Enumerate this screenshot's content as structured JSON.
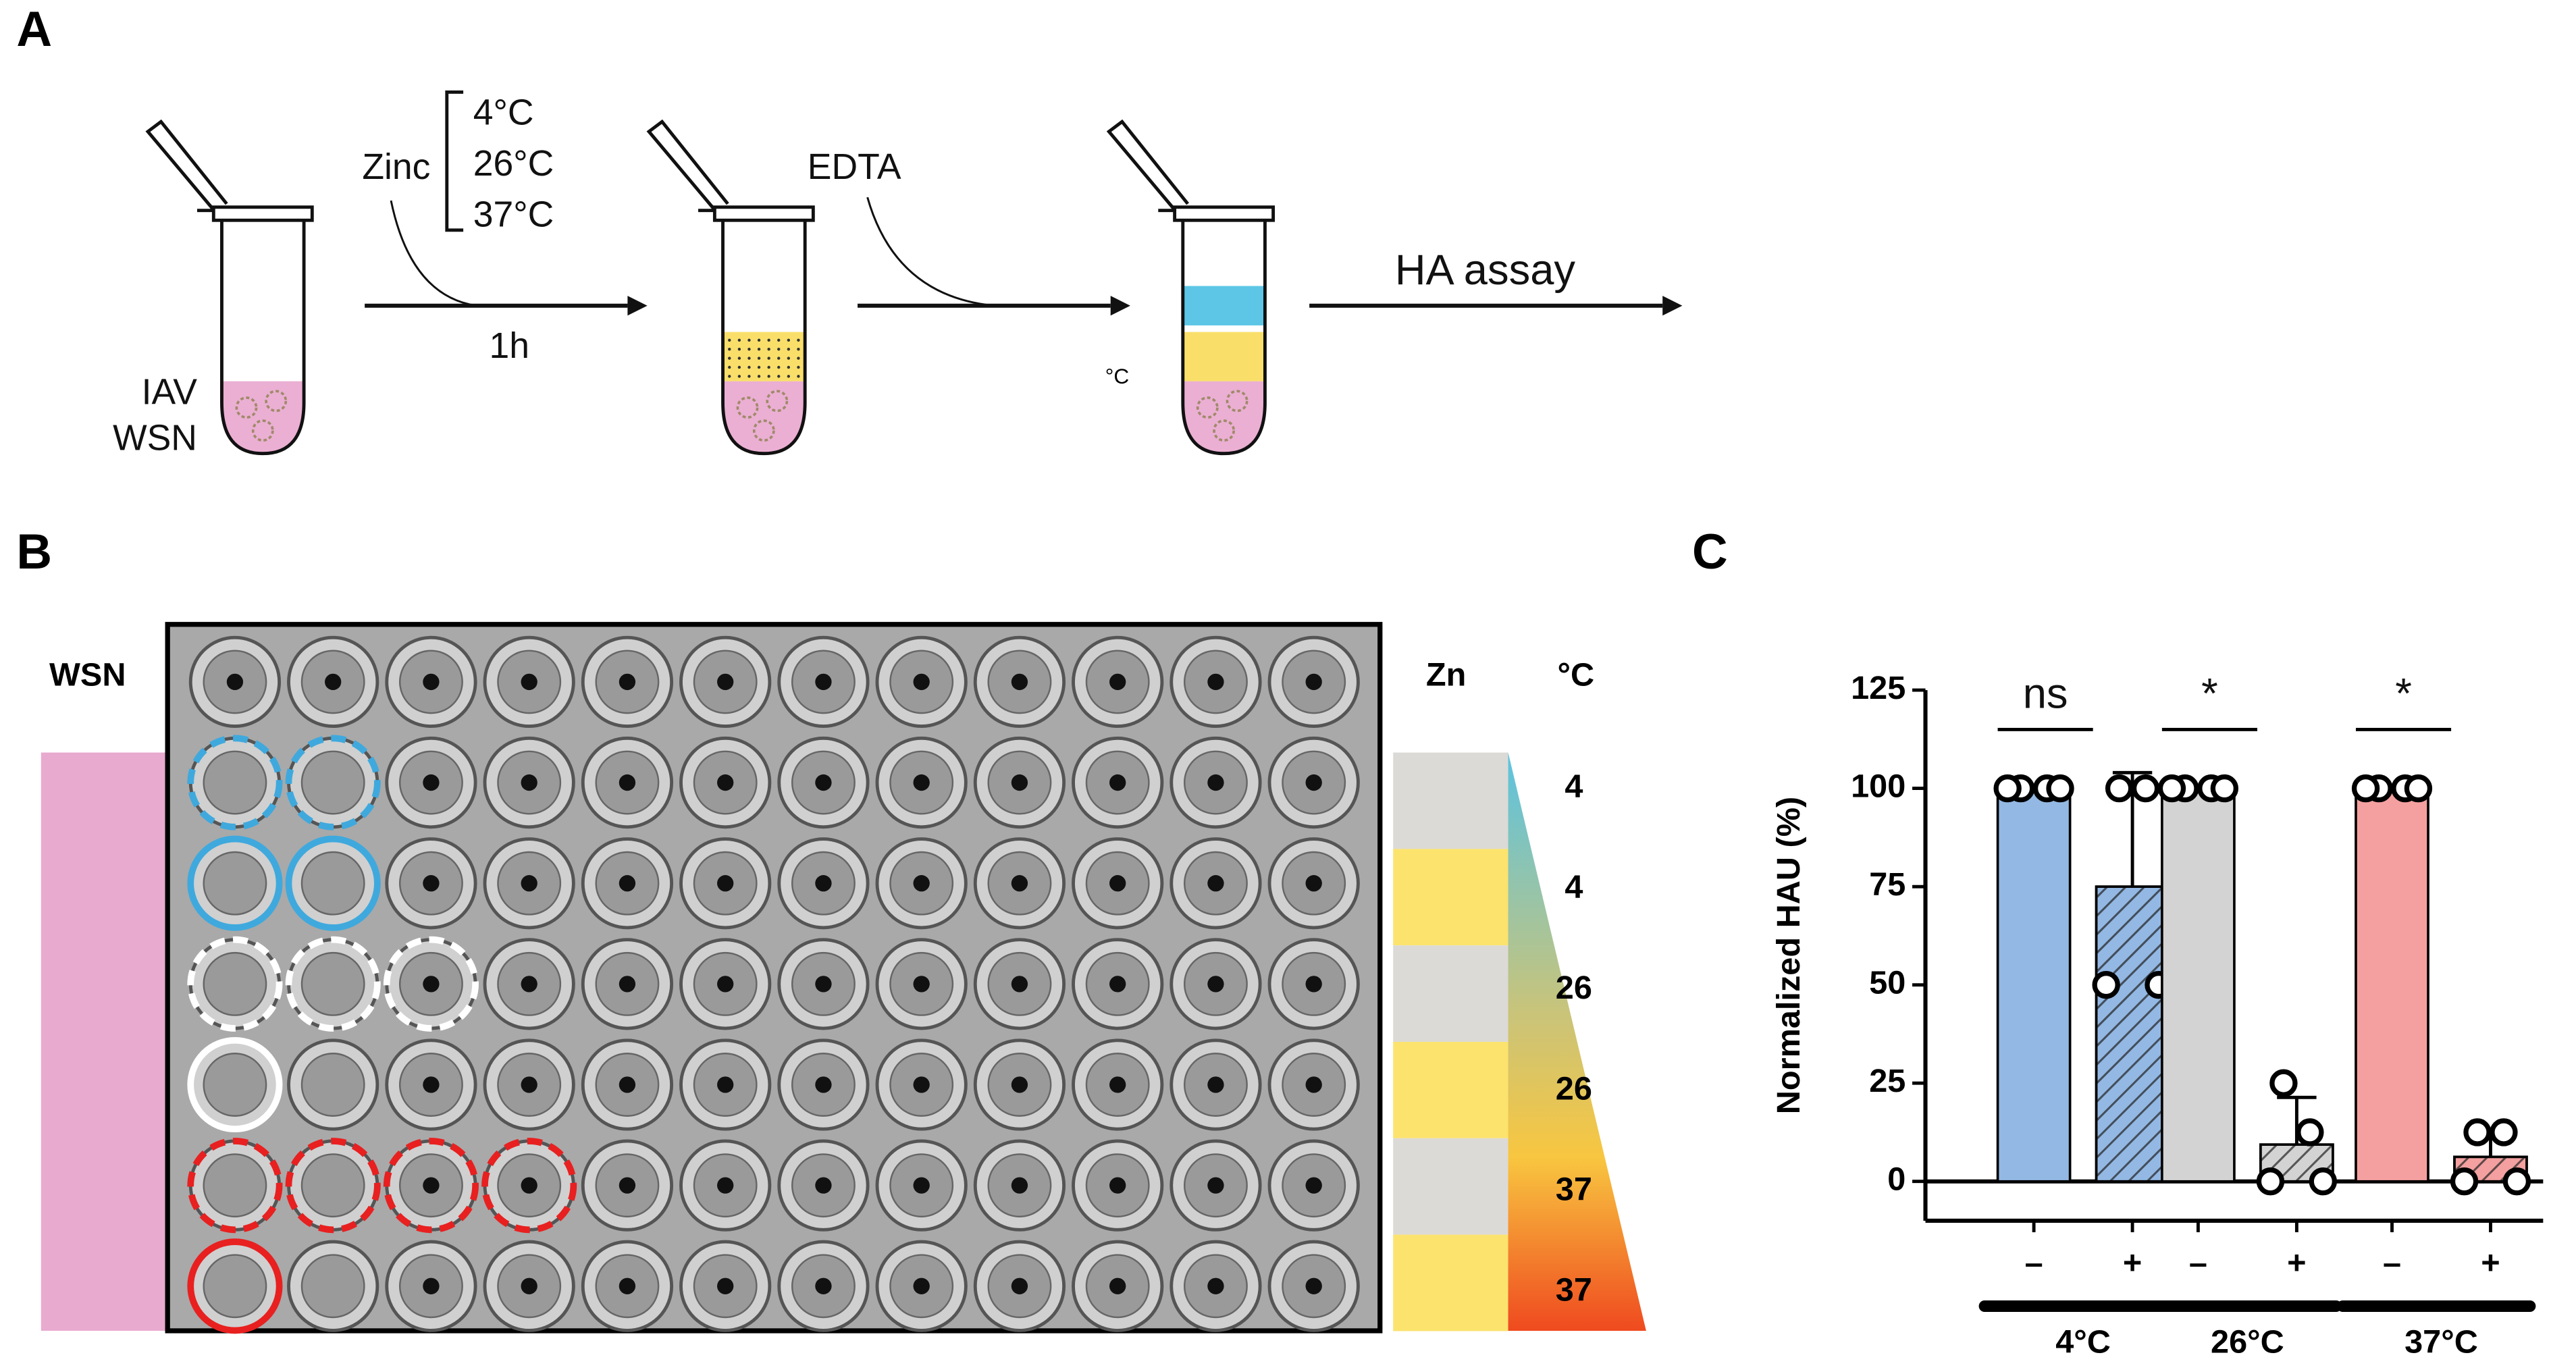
{
  "panel_a": {
    "label": "A",
    "sample": [
      "IAV",
      "WSN"
    ],
    "zinc": "Zinc",
    "temperatures": [
      "4°C",
      "26°C",
      "37°C"
    ],
    "time": "1h",
    "edta": "EDTA",
    "unit_mark": "°C",
    "assay": "HA assay"
  },
  "panel_b": {
    "label": "B",
    "virus": "WSN",
    "zn_header": "Zn",
    "temp_header": "°C",
    "row_temps": [
      4,
      4,
      26,
      26,
      37,
      37
    ]
  },
  "chart_data": {
    "type": "bar",
    "label": "C",
    "ylabel": "Normalized HAU  (%)",
    "categories": [
      "–",
      "+",
      "–",
      "+",
      "–",
      "+"
    ],
    "groups": [
      "4°C",
      "26°C",
      "37°C"
    ],
    "significance": [
      "ns",
      "*",
      "*"
    ],
    "values": [
      100,
      75,
      100,
      9.375,
      100,
      6.25
    ],
    "errors": [
      null,
      29,
      null,
      12,
      null,
      7
    ],
    "points": [
      [
        100,
        100,
        100,
        100
      ],
      [
        100,
        100,
        50,
        50
      ],
      [
        100,
        100,
        100,
        100
      ],
      [
        25,
        12.5,
        0,
        0
      ],
      [
        100,
        100,
        100,
        100
      ],
      [
        12.5,
        12.5,
        0,
        0
      ]
    ],
    "colors": [
      "#93b8e3",
      "#93b8e3",
      "#d3d3d3",
      "#d3d3d3",
      "#f4a0a0",
      "#f4a0a0"
    ],
    "hatched": [
      false,
      true,
      false,
      true,
      false,
      true
    ],
    "ylim": [
      -10,
      125
    ],
    "yticks": [
      0,
      25,
      50,
      75,
      100,
      125
    ]
  }
}
